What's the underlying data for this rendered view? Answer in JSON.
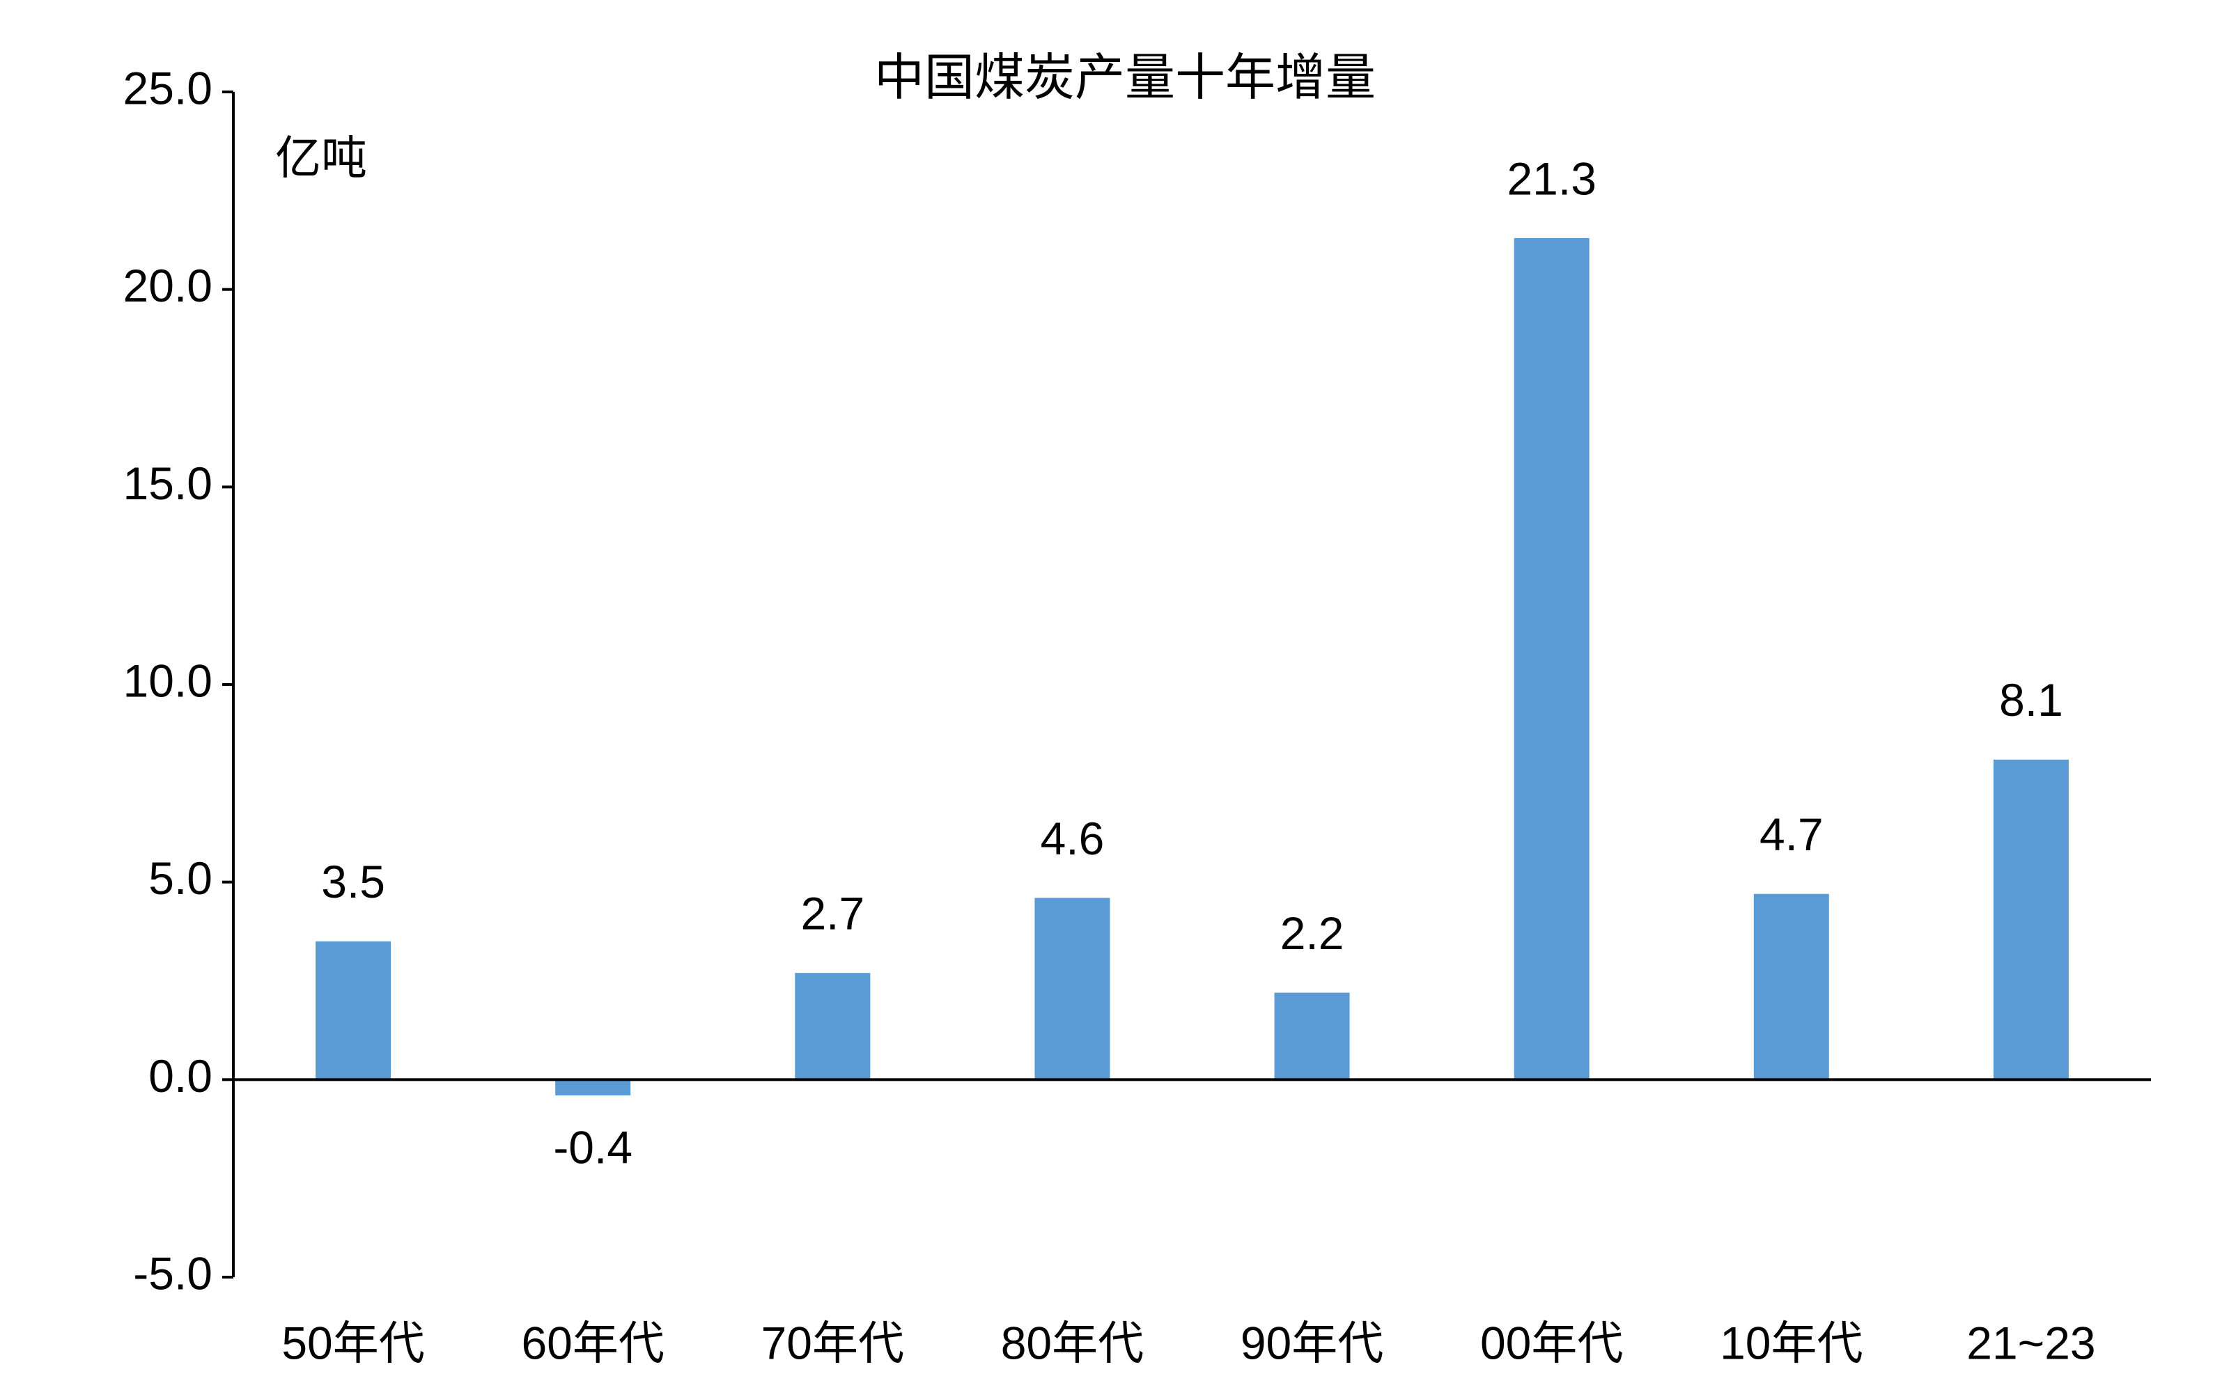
{
  "chart_data": {
    "type": "bar",
    "title": "中国煤炭产量十年增量",
    "unit_label": "亿吨",
    "categories": [
      "50年代",
      "60年代",
      "70年代",
      "80年代",
      "90年代",
      "00年代",
      "10年代",
      "21~23"
    ],
    "values": [
      3.5,
      -0.4,
      2.7,
      4.6,
      2.2,
      21.3,
      4.7,
      8.1
    ],
    "color": "#5b9bd5",
    "ylim": [
      -5,
      25
    ],
    "yticks": [
      {
        "value": -5,
        "label": "-5.0"
      },
      {
        "value": 0,
        "label": "0.0"
      },
      {
        "value": 5,
        "label": "5.0"
      },
      {
        "value": 10,
        "label": "10.0"
      },
      {
        "value": 15,
        "label": "15.0"
      },
      {
        "value": 20,
        "label": "20.0"
      },
      {
        "value": 25,
        "label": "25.0"
      }
    ],
    "grid": false
  }
}
